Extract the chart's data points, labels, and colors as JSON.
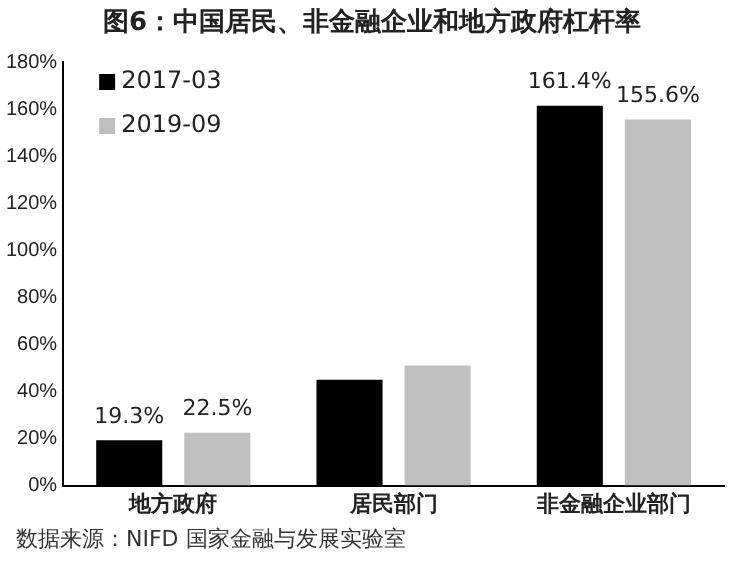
{
  "chart_data": {
    "type": "bar",
    "title": "图6：中国居民、非金融企业和地方政府杠杆率",
    "categories": [
      "地方政府",
      "居民部门",
      "非金融企业部门"
    ],
    "series": [
      {
        "name": "2017-03",
        "color": "#000000",
        "values": [
          19.3,
          45,
          161.4
        ],
        "value_labels": [
          "19.3%",
          null,
          "161.4%"
        ]
      },
      {
        "name": "2019-09",
        "color": "#bfbfbf",
        "values": [
          22.5,
          51,
          155.6
        ],
        "value_labels": [
          "22.5%",
          null,
          "155.6%"
        ]
      }
    ],
    "ylim": [
      0,
      180
    ],
    "yticks": [
      {
        "value": 0,
        "label": "0%"
      },
      {
        "value": 20,
        "label": "20%"
      },
      {
        "value": 40,
        "label": "40%"
      },
      {
        "value": 60,
        "label": "60%"
      },
      {
        "value": 80,
        "label": "80%"
      },
      {
        "value": 100,
        "label": "100%"
      },
      {
        "value": 120,
        "label": "120%"
      },
      {
        "value": 140,
        "label": "140%"
      },
      {
        "value": 160,
        "label": "160%"
      },
      {
        "value": 180,
        "label": "180%"
      }
    ],
    "grid": false,
    "legend": "top left",
    "annotations": [
      "数据来源：NIFD 国家金融与发展实验室"
    ]
  }
}
